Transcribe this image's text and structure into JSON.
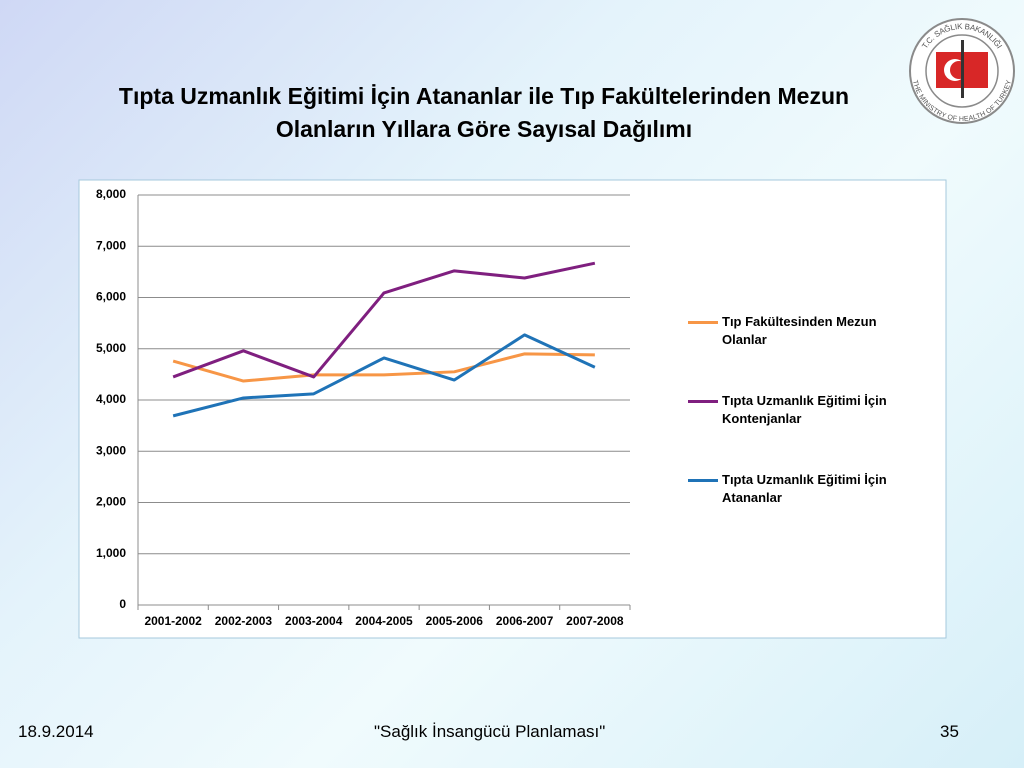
{
  "logo": {
    "top_text": "T.C. SAĞLIK BAKANLIĞI",
    "bottom_text": "THE MINISTRY OF HEALTH OF TURKEY"
  },
  "chart_data": {
    "type": "line",
    "title": "Tıpta Uzmanlık Eğitimi İçin Atananlar ile Tıp Fakültelerinden Mezun Olanların Yıllara Göre Sayısal Dağılımı",
    "categories": [
      "2001-2002",
      "2002-2003",
      "2003-2004",
      "2004-2005",
      "2005-2006",
      "2006-2007",
      "2007-2008"
    ],
    "series": [
      {
        "name": "Tıp Fakültesinden Mezun Olanlar",
        "color": "#f79646",
        "values": [
          4760,
          4370,
          4490,
          4490,
          4550,
          4900,
          4880
        ]
      },
      {
        "name": "Tıpta Uzmanlık Eğitimi İçin Kontenjanlar",
        "color": "#7f1f7f",
        "values": [
          4450,
          4960,
          4450,
          6090,
          6520,
          6380,
          6670
        ]
      },
      {
        "name": "Tıpta Uzmanlık Eğitimi İçin Atananlar",
        "color": "#1f73b7",
        "values": [
          3690,
          4040,
          4120,
          4820,
          4390,
          5270,
          4640
        ]
      }
    ],
    "ylim": [
      0,
      8000
    ],
    "yticks": [
      0,
      {
        "value": 1000,
        "label": "1,000"
      },
      {
        "value": 2000,
        "label": "2,000"
      },
      {
        "value": 3000,
        "label": "3,000"
      },
      {
        "value": 4000,
        "label": "4,000"
      },
      {
        "value": 5000,
        "label": "5,000"
      },
      {
        "value": 6000,
        "label": "6,000"
      },
      {
        "value": 7000,
        "label": "7,000"
      },
      {
        "value": 8000,
        "label": "8,000"
      }
    ],
    "grid": true,
    "legend": "right"
  },
  "footer": {
    "date": "18.9.2014",
    "center": "\"Sağlık İnsangücü Planlaması\"",
    "page": "35"
  }
}
